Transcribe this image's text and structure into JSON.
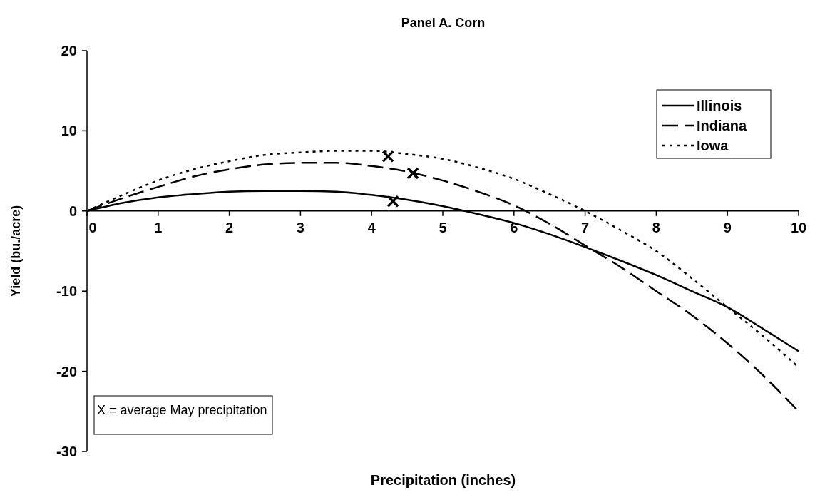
{
  "chart_data": {
    "type": "line",
    "title": "Panel A. Corn",
    "xlabel": "Precipitation (inches)",
    "ylabel": "Yield (bu./acre)",
    "xlim": [
      0,
      10
    ],
    "xticks": [
      0,
      1,
      2,
      3,
      4,
      5,
      6,
      7,
      8,
      9,
      10
    ],
    "ylim": [
      -30,
      20
    ],
    "yticks": [
      -30,
      -20,
      -10,
      0,
      10,
      20
    ],
    "x": [
      0,
      0.5,
      1,
      1.5,
      2,
      2.5,
      3,
      3.5,
      4,
      4.5,
      5,
      5.5,
      6,
      6.5,
      7,
      7.5,
      8,
      8.5,
      9,
      9.5,
      10
    ],
    "series": [
      {
        "name": "Illinois",
        "color": "#000000",
        "line_style": "solid",
        "values": [
          0,
          1,
          1.7,
          2.1,
          2.4,
          2.5,
          2.5,
          2.4,
          2.0,
          1.4,
          0.6,
          -0.4,
          -1.5,
          -2.9,
          -4.5,
          -6.2,
          -8,
          -10,
          -12,
          -14.7,
          -17.5
        ]
      },
      {
        "name": "Indiana",
        "color": "#000000",
        "line_style": "dashed",
        "values": [
          0,
          1.6,
          3,
          4.3,
          5.2,
          5.8,
          6,
          6,
          5.6,
          4.9,
          3.8,
          2.4,
          0.7,
          -1.6,
          -4.3,
          -7,
          -10,
          -13,
          -16.5,
          -20.5,
          -25
        ]
      },
      {
        "name": "Iowa",
        "color": "#000000",
        "line_style": "dotted",
        "values": [
          0,
          2,
          3.8,
          5.2,
          6.2,
          7,
          7.3,
          7.5,
          7.5,
          7.1,
          6.5,
          5.4,
          4,
          2.1,
          0,
          -2.4,
          -5,
          -8.4,
          -12,
          -15.6,
          -19.5
        ]
      },
      {
        "type": "scatter",
        "color": "#000000",
        "marker": "cross",
        "x": [
          4.3,
          4.58,
          4.23
        ],
        "values": [
          1.2,
          4.7,
          6.8
        ]
      }
    ],
    "legend": "top right",
    "grid": false,
    "annotations": [
      "X = average May precipitation"
    ]
  }
}
